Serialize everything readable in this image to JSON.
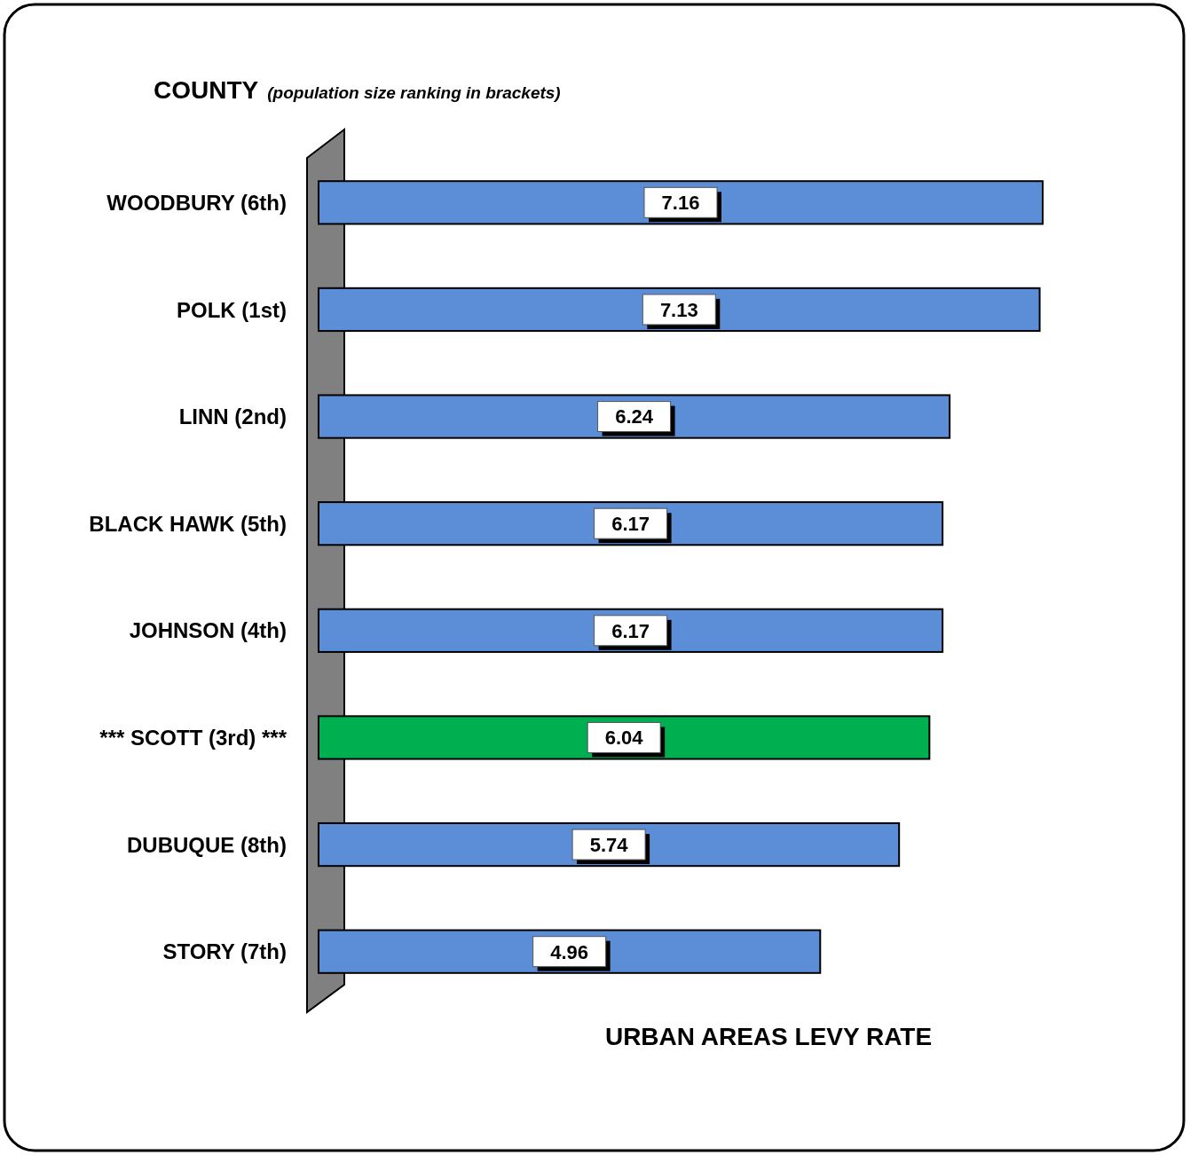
{
  "chart_data": {
    "type": "bar",
    "orientation": "horizontal",
    "title": "COUNTY",
    "subtitle": "(population size ranking in brackets)",
    "xlabel": "URBAN AREAS LEVY RATE",
    "categories": [
      "WOODBURY (6th)",
      "POLK (1st)",
      "LINN (2nd)",
      "BLACK HAWK (5th)",
      "JOHNSON (4th)",
      "*** SCOTT (3rd) ***",
      "DUBUQUE (8th)",
      "STORY (7th)"
    ],
    "values": [
      7.16,
      7.13,
      6.24,
      6.17,
      6.17,
      6.04,
      5.74,
      4.96
    ],
    "colors": [
      "#5b8ed6",
      "#5b8ed6",
      "#5b8ed6",
      "#5b8ed6",
      "#5b8ed6",
      "#00b050",
      "#5b8ed6",
      "#5b8ed6"
    ],
    "data_labels": true
  }
}
